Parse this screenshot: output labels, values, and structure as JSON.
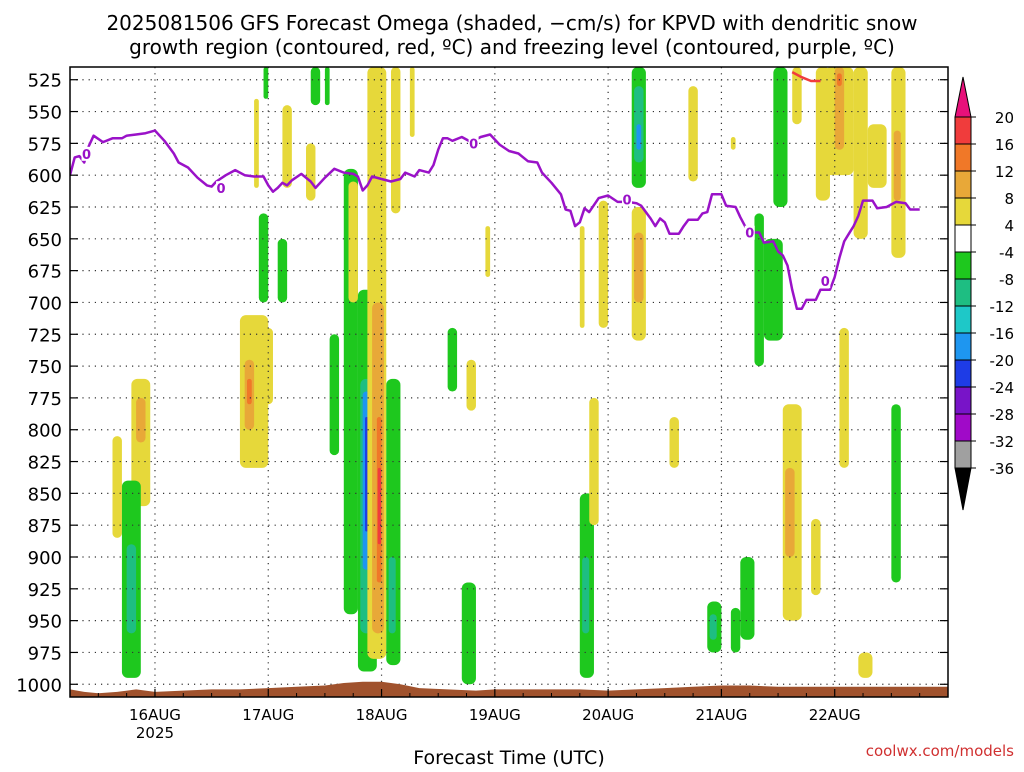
{
  "chart_data": {
    "type": "heatmap",
    "title_line1": "2025081506 GFS Forecast Omega (shaded, −cm/s) for KPVD with dendritic snow",
    "title_line2": "growth region (contoured, red, ºC) and freezing level (contoured, purple, ºC)",
    "xlabel": "Forecast Time (UTC)",
    "ylabel": "",
    "credit": "coolwx.com/models",
    "x_start_hours_after_2025081506": 0,
    "x_end_hours_after_2025081506": 186,
    "x_ticks": [
      {
        "label": "16AUG",
        "sublabel": "2025",
        "hours": 18
      },
      {
        "label": "17AUG",
        "sublabel": "",
        "hours": 42
      },
      {
        "label": "18AUG",
        "sublabel": "",
        "hours": 66
      },
      {
        "label": "19AUG",
        "sublabel": "",
        "hours": 90
      },
      {
        "label": "20AUG",
        "sublabel": "",
        "hours": 114
      },
      {
        "label": "21AUG",
        "sublabel": "",
        "hours": 138
      },
      {
        "label": "22AUG",
        "sublabel": "",
        "hours": 162
      }
    ],
    "y_ticks_hPa": [
      525,
      550,
      575,
      600,
      625,
      650,
      675,
      700,
      725,
      750,
      775,
      800,
      825,
      850,
      875,
      900,
      925,
      950,
      975,
      1000
    ],
    "ylim_hPa": [
      1010,
      515
    ],
    "colorbar": {
      "labels": [
        "20",
        "16",
        "12",
        "8",
        "4",
        "-4",
        "-8",
        "-12",
        "-16",
        "-20",
        "-24",
        "-28",
        "-32",
        "-36"
      ],
      "bins": [
        {
          "range": "> 20",
          "color": "#e8107a"
        },
        {
          "range": "16 to 20",
          "color": "#f03c3c"
        },
        {
          "range": "12 to 16",
          "color": "#f07828"
        },
        {
          "range": "8 to 12",
          "color": "#e8a838"
        },
        {
          "range": "4 to 8",
          "color": "#e6d83a"
        },
        {
          "range": "-4 to 4",
          "color": "#ffffff"
        },
        {
          "range": "-8 to -4",
          "color": "#1ec81e"
        },
        {
          "range": "-12 to -8",
          "color": "#1ebe82"
        },
        {
          "range": "-16 to -12",
          "color": "#1ec8c8"
        },
        {
          "range": "-20 to -16",
          "color": "#1e96f0"
        },
        {
          "range": "-24 to -20",
          "color": "#1e3ce6"
        },
        {
          "range": "-28 to -24",
          "color": "#7814c8"
        },
        {
          "range": "-32 to -28",
          "color": "#a00ac8"
        },
        {
          "range": "-36 to -32",
          "color": "#a0a0a0"
        },
        {
          "range": "< -36",
          "color": "#000000"
        }
      ]
    },
    "freezing_level": {
      "contour_label": "0",
      "color": "#9a12c8",
      "points": [
        [
          0,
          600
        ],
        [
          1,
          586
        ],
        [
          2,
          585
        ],
        [
          3,
          590
        ],
        [
          4,
          577
        ],
        [
          5,
          569
        ],
        [
          7,
          574
        ],
        [
          9,
          571
        ],
        [
          11,
          571
        ],
        [
          12,
          569
        ],
        [
          14,
          568
        ],
        [
          16,
          567
        ],
        [
          18,
          565
        ],
        [
          20,
          573
        ],
        [
          22,
          583
        ],
        [
          23,
          590
        ],
        [
          25,
          594
        ],
        [
          27,
          602
        ],
        [
          29,
          608
        ],
        [
          30,
          609
        ],
        [
          31,
          605
        ],
        [
          33,
          600
        ],
        [
          35,
          596
        ],
        [
          37,
          600
        ],
        [
          39,
          601
        ],
        [
          41,
          601
        ],
        [
          42,
          608
        ],
        [
          43,
          613
        ],
        [
          44,
          610
        ],
        [
          45,
          606
        ],
        [
          46,
          608
        ],
        [
          47,
          604
        ],
        [
          49,
          599
        ],
        [
          51,
          605
        ],
        [
          52,
          610
        ],
        [
          54,
          602
        ],
        [
          56,
          595
        ],
        [
          58,
          598
        ],
        [
          60,
          599
        ],
        [
          61,
          601
        ],
        [
          62,
          612
        ],
        [
          63,
          608
        ],
        [
          64,
          601
        ],
        [
          66,
          603
        ],
        [
          68,
          605
        ],
        [
          70,
          603
        ],
        [
          71,
          598
        ],
        [
          73,
          601
        ],
        [
          74,
          596
        ],
        [
          76,
          598
        ],
        [
          77,
          592
        ],
        [
          78,
          580
        ],
        [
          79,
          571
        ],
        [
          80,
          571
        ],
        [
          81,
          573
        ],
        [
          83,
          570
        ],
        [
          85,
          574
        ],
        [
          87,
          570
        ],
        [
          89,
          568
        ],
        [
          91,
          576
        ],
        [
          93,
          581
        ],
        [
          95,
          583
        ],
        [
          97,
          589
        ],
        [
          99,
          590
        ],
        [
          100,
          598
        ],
        [
          102,
          606
        ],
        [
          104,
          615
        ],
        [
          105,
          627
        ],
        [
          106,
          628
        ],
        [
          107,
          640
        ],
        [
          108,
          637
        ],
        [
          109,
          626
        ],
        [
          110,
          629
        ],
        [
          112,
          618
        ],
        [
          114,
          616
        ],
        [
          116,
          621
        ],
        [
          118,
          621
        ],
        [
          120,
          622
        ],
        [
          121,
          624
        ],
        [
          122,
          629
        ],
        [
          123,
          634
        ],
        [
          124,
          640
        ],
        [
          125,
          634
        ],
        [
          126,
          637
        ],
        [
          127,
          646
        ],
        [
          129,
          646
        ],
        [
          130,
          640
        ],
        [
          131,
          635
        ],
        [
          133,
          635
        ],
        [
          134,
          630
        ],
        [
          135,
          629
        ],
        [
          136,
          615
        ],
        [
          138,
          615
        ],
        [
          139,
          624
        ],
        [
          141,
          625
        ],
        [
          142,
          633
        ],
        [
          143,
          640
        ],
        [
          144,
          645
        ],
        [
          146,
          645
        ],
        [
          147,
          653
        ],
        [
          149,
          652
        ],
        [
          150,
          660
        ],
        [
          151,
          663
        ],
        [
          152,
          671
        ],
        [
          153,
          690
        ],
        [
          154,
          705
        ],
        [
          155,
          705
        ],
        [
          156,
          698
        ],
        [
          158,
          698
        ],
        [
          159,
          690
        ],
        [
          161,
          690
        ],
        [
          162,
          680
        ],
        [
          163,
          665
        ],
        [
          164,
          652
        ],
        [
          165,
          646
        ],
        [
          166,
          640
        ],
        [
          167,
          632
        ],
        [
          168,
          620
        ],
        [
          170,
          620
        ],
        [
          171,
          626
        ],
        [
          173,
          625
        ],
        [
          175,
          621
        ],
        [
          177,
          622
        ],
        [
          178,
          627
        ],
        [
          180,
          627
        ]
      ]
    },
    "dendritic_growth_region": {
      "color": "#f03c3c",
      "points": [
        [
          153,
          519
        ],
        [
          155,
          523
        ],
        [
          157,
          526
        ],
        [
          159,
          526
        ]
      ]
    },
    "omega_regions": [
      {
        "color": "#e6d83a",
        "t0": 13,
        "t1": 17,
        "p0": 760,
        "p1": 860
      },
      {
        "color": "#e8a838",
        "t0": 14,
        "t1": 16,
        "p0": 775,
        "p1": 810
      },
      {
        "color": "#e6d83a",
        "t0": 9,
        "t1": 11,
        "p0": 805,
        "p1": 885
      },
      {
        "color": "#1ec81e",
        "t0": 11,
        "t1": 15,
        "p0": 840,
        "p1": 995
      },
      {
        "color": "#1ebe82",
        "t0": 12,
        "t1": 14,
        "p0": 890,
        "p1": 960
      },
      {
        "color": "#1ec81e",
        "t0": 40,
        "t1": 42,
        "p0": 630,
        "p1": 700
      },
      {
        "color": "#e6d83a",
        "t0": 36,
        "t1": 42,
        "p0": 710,
        "p1": 830
      },
      {
        "color": "#e8a838",
        "t0": 37,
        "t1": 39,
        "p0": 745,
        "p1": 800
      },
      {
        "color": "#f07828",
        "t0": 37.5,
        "t1": 38.5,
        "p0": 760,
        "p1": 780
      },
      {
        "color": "#e6d83a",
        "t0": 41,
        "t1": 43,
        "p0": 720,
        "p1": 780
      },
      {
        "color": "#e6d83a",
        "t0": 39,
        "t1": 40,
        "p0": 540,
        "p1": 610
      },
      {
        "color": "#e6d83a",
        "t0": 45,
        "t1": 47,
        "p0": 545,
        "p1": 610
      },
      {
        "color": "#1ec81e",
        "t0": 44,
        "t1": 46,
        "p0": 650,
        "p1": 700
      },
      {
        "color": "#1ec81e",
        "t0": 41,
        "t1": 42,
        "p0": 515,
        "p1": 540
      },
      {
        "color": "#1ec81e",
        "t0": 51,
        "t1": 53,
        "p0": 515,
        "p1": 545
      },
      {
        "color": "#e6d83a",
        "t0": 50,
        "t1": 52,
        "p0": 575,
        "p1": 620
      },
      {
        "color": "#1ec81e",
        "t0": 54,
        "t1": 55,
        "p0": 515,
        "p1": 545
      },
      {
        "color": "#1ec81e",
        "t0": 55,
        "t1": 57,
        "p0": 725,
        "p1": 820
      },
      {
        "color": "#1ec81e",
        "t0": 58,
        "t1": 61,
        "p0": 595,
        "p1": 945
      },
      {
        "color": "#e6d83a",
        "t0": 59,
        "t1": 61,
        "p0": 605,
        "p1": 700
      },
      {
        "color": "#1ec81e",
        "t0": 61,
        "t1": 65,
        "p0": 690,
        "p1": 990
      },
      {
        "color": "#1ebe82",
        "t0": 61.5,
        "t1": 64,
        "p0": 760,
        "p1": 960
      },
      {
        "color": "#1e96f0",
        "t0": 62,
        "t1": 63.5,
        "p0": 770,
        "p1": 910
      },
      {
        "color": "#1e3ce6",
        "t0": 62.5,
        "t1": 63.2,
        "p0": 790,
        "p1": 880
      },
      {
        "color": "#e6d83a",
        "t0": 63,
        "t1": 67,
        "p0": 515,
        "p1": 980
      },
      {
        "color": "#e8a838",
        "t0": 64,
        "t1": 66.5,
        "p0": 700,
        "p1": 960
      },
      {
        "color": "#f07828",
        "t0": 65,
        "t1": 66,
        "p0": 790,
        "p1": 920
      },
      {
        "color": "#f03c3c",
        "t0": 65.2,
        "t1": 65.9,
        "p0": 830,
        "p1": 890
      },
      {
        "color": "#1ec81e",
        "t0": 67,
        "t1": 70,
        "p0": 760,
        "p1": 985
      },
      {
        "color": "#1ebe82",
        "t0": 67.5,
        "t1": 69,
        "p0": 900,
        "p1": 960
      },
      {
        "color": "#e6d83a",
        "t0": 68,
        "t1": 70,
        "p0": 515,
        "p1": 630
      },
      {
        "color": "#e6d83a",
        "t0": 72,
        "t1": 73,
        "p0": 515,
        "p1": 570
      },
      {
        "color": "#1ec81e",
        "t0": 80,
        "t1": 82,
        "p0": 720,
        "p1": 770
      },
      {
        "color": "#e6d83a",
        "t0": 84,
        "t1": 86,
        "p0": 745,
        "p1": 785
      },
      {
        "color": "#1ec81e",
        "t0": 83,
        "t1": 86,
        "p0": 920,
        "p1": 1000
      },
      {
        "color": "#e6d83a",
        "t0": 88,
        "t1": 89,
        "p0": 640,
        "p1": 680
      },
      {
        "color": "#e6d83a",
        "t0": 108,
        "t1": 109,
        "p0": 640,
        "p1": 720
      },
      {
        "color": "#1ec81e",
        "t0": 108,
        "t1": 111,
        "p0": 850,
        "p1": 995
      },
      {
        "color": "#1ebe82",
        "t0": 108.5,
        "t1": 110,
        "p0": 900,
        "p1": 960
      },
      {
        "color": "#e6d83a",
        "t0": 110,
        "t1": 112,
        "p0": 775,
        "p1": 875
      },
      {
        "color": "#e6d83a",
        "t0": 112,
        "t1": 114,
        "p0": 620,
        "p1": 720
      },
      {
        "color": "#1ec81e",
        "t0": 119,
        "t1": 122,
        "p0": 515,
        "p1": 610
      },
      {
        "color": "#1ebe82",
        "t0": 119.5,
        "t1": 121.5,
        "p0": 530,
        "p1": 590
      },
      {
        "color": "#1e96f0",
        "t0": 120,
        "t1": 121,
        "p0": 560,
        "p1": 580
      },
      {
        "color": "#e6d83a",
        "t0": 119,
        "t1": 122,
        "p0": 625,
        "p1": 730
      },
      {
        "color": "#e8a838",
        "t0": 119.5,
        "t1": 121.5,
        "p0": 645,
        "p1": 700
      },
      {
        "color": "#e6d83a",
        "t0": 127,
        "t1": 129,
        "p0": 790,
        "p1": 830
      },
      {
        "color": "#e6d83a",
        "t0": 131,
        "t1": 133,
        "p0": 530,
        "p1": 605
      },
      {
        "color": "#1ec81e",
        "t0": 135,
        "t1": 138,
        "p0": 935,
        "p1": 975
      },
      {
        "color": "#1ebe82",
        "t0": 135.5,
        "t1": 137,
        "p0": 945,
        "p1": 965
      },
      {
        "color": "#1ec81e",
        "t0": 140,
        "t1": 142,
        "p0": 940,
        "p1": 975
      },
      {
        "color": "#e6d83a",
        "t0": 140,
        "t1": 141,
        "p0": 570,
        "p1": 580
      },
      {
        "color": "#1ec81e",
        "t0": 142,
        "t1": 145,
        "p0": 900,
        "p1": 965
      },
      {
        "color": "#1ec81e",
        "t0": 145,
        "t1": 147,
        "p0": 630,
        "p1": 750
      },
      {
        "color": "#1ec81e",
        "t0": 147,
        "t1": 151,
        "p0": 650,
        "p1": 730
      },
      {
        "color": "#1ec81e",
        "t0": 149,
        "t1": 152,
        "p0": 515,
        "p1": 625
      },
      {
        "color": "#e6d83a",
        "t0": 151,
        "t1": 155,
        "p0": 780,
        "p1": 950
      },
      {
        "color": "#e8a838",
        "t0": 151.5,
        "t1": 153.5,
        "p0": 830,
        "p1": 900
      },
      {
        "color": "#e6d83a",
        "t0": 153,
        "t1": 155,
        "p0": 515,
        "p1": 560
      },
      {
        "color": "#e6d83a",
        "t0": 157,
        "t1": 159,
        "p0": 870,
        "p1": 930
      },
      {
        "color": "#e6d83a",
        "t0": 158,
        "t1": 161,
        "p0": 515,
        "p1": 620
      },
      {
        "color": "#e6d83a",
        "t0": 160,
        "t1": 166,
        "p0": 515,
        "p1": 600
      },
      {
        "color": "#e8a838",
        "t0": 162,
        "t1": 164,
        "p0": 515,
        "p1": 580
      },
      {
        "color": "#f07828",
        "t0": 162.5,
        "t1": 163.5,
        "p0": 520,
        "p1": 530
      },
      {
        "color": "#e6d83a",
        "t0": 163,
        "t1": 165,
        "p0": 720,
        "p1": 830
      },
      {
        "color": "#e6d83a",
        "t0": 166,
        "t1": 169,
        "p0": 515,
        "p1": 650
      },
      {
        "color": "#e6d83a",
        "t0": 169,
        "t1": 173,
        "p0": 560,
        "p1": 610
      },
      {
        "color": "#e6d83a",
        "t0": 174,
        "t1": 177,
        "p0": 515,
        "p1": 665
      },
      {
        "color": "#e8a838",
        "t0": 174.5,
        "t1": 176,
        "p0": 565,
        "p1": 620
      },
      {
        "color": "#e6d83a",
        "t0": 167,
        "t1": 170,
        "p0": 975,
        "p1": 995
      },
      {
        "color": "#1ec81e",
        "t0": 174,
        "t1": 176,
        "p0": 780,
        "p1": 920
      }
    ],
    "surface_terrain": {
      "color": "#a0522d",
      "points": [
        [
          0,
          1004
        ],
        [
          3,
          1006
        ],
        [
          6,
          1007
        ],
        [
          10,
          1006
        ],
        [
          14,
          1004
        ],
        [
          18,
          1006
        ],
        [
          24,
          1005
        ],
        [
          30,
          1004
        ],
        [
          36,
          1004
        ],
        [
          42,
          1003
        ],
        [
          48,
          1002
        ],
        [
          54,
          1001
        ],
        [
          58,
          999
        ],
        [
          62,
          998
        ],
        [
          66,
          998
        ],
        [
          70,
          1000
        ],
        [
          74,
          1003
        ],
        [
          80,
          1004
        ],
        [
          86,
          1005
        ],
        [
          90,
          1004
        ],
        [
          96,
          1004
        ],
        [
          102,
          1004
        ],
        [
          108,
          1004
        ],
        [
          114,
          1005
        ],
        [
          120,
          1004
        ],
        [
          126,
          1003
        ],
        [
          132,
          1002
        ],
        [
          138,
          1001
        ],
        [
          144,
          1001
        ],
        [
          150,
          1002
        ],
        [
          156,
          1002
        ],
        [
          162,
          1002
        ],
        [
          168,
          1002
        ],
        [
          174,
          1002
        ],
        [
          180,
          1002
        ],
        [
          186,
          1002
        ]
      ]
    }
  }
}
